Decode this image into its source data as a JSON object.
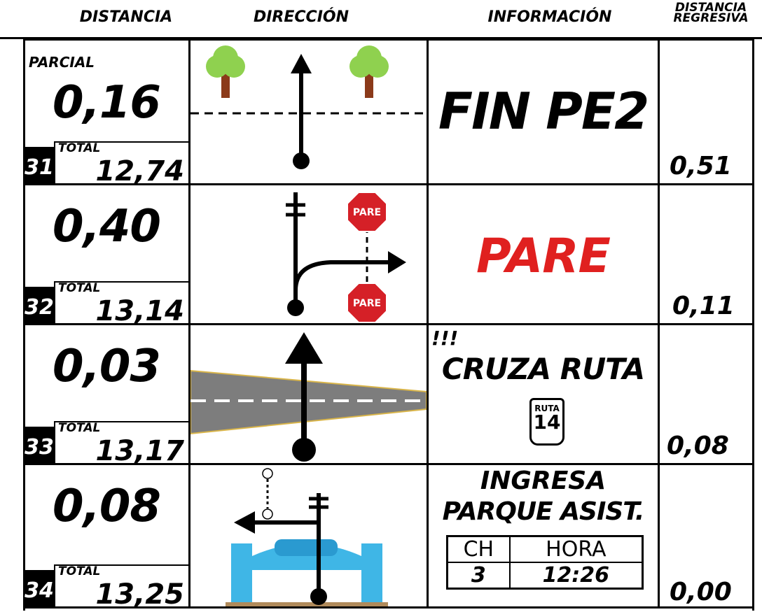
{
  "header": {
    "columns": [
      "DISTANCIA",
      "DIRECCIÓN",
      "INFORMACIÓN",
      "DISTANCIA REGRESIVA"
    ]
  },
  "rows": [
    {
      "number": "31",
      "partial_label": "PARCIAL",
      "partial": "0,16",
      "total_label": "TOTAL",
      "total": "12,74",
      "info": {
        "text": "FIN PE2"
      },
      "regressive": "0,51"
    },
    {
      "number": "32",
      "partial": "0,40",
      "total_label": "TOTAL",
      "total": "13,14",
      "direction": {
        "signs": [
          "PARE",
          "PARE"
        ]
      },
      "info": {
        "text": "PARE"
      },
      "regressive": "0,11"
    },
    {
      "number": "33",
      "partial": "0,03",
      "total_label": "TOTAL",
      "total": "13,17",
      "info": {
        "warning": "!!!",
        "text": "CRUZA RUTA",
        "route_sign": {
          "label": "RUTA",
          "number": "14"
        }
      },
      "regressive": "0,08"
    },
    {
      "number": "34",
      "partial": "0,08",
      "total_label": "TOTAL",
      "total": "13,25",
      "info": {
        "lines": [
          "INGRESA",
          "PARQUE ASIST."
        ],
        "table": {
          "headers": [
            "CH",
            "HORA"
          ],
          "row": [
            "3",
            "12:26"
          ]
        }
      },
      "regressive": "0,00"
    }
  ]
}
